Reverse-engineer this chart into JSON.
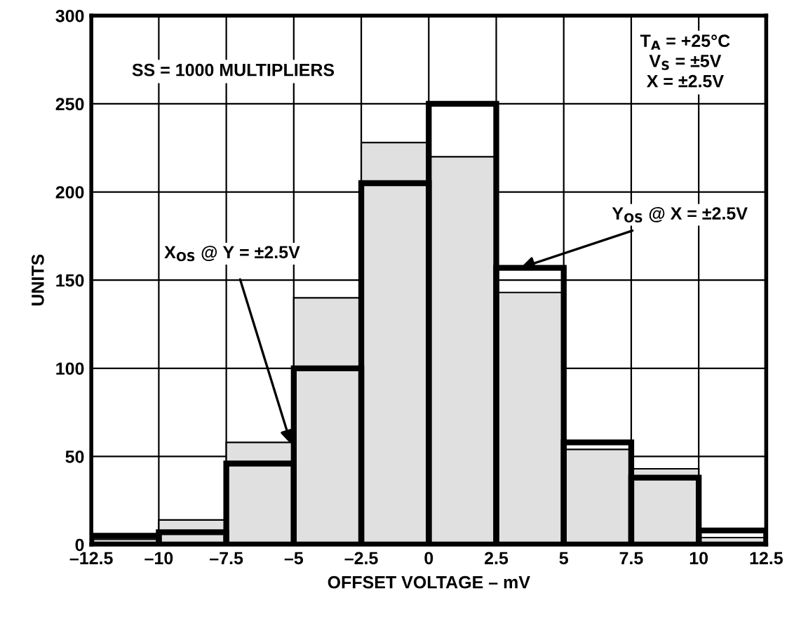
{
  "chart_data": {
    "type": "histogram",
    "xlabel": "OFFSET VOLTAGE – mV",
    "ylabel": "UNITS",
    "bins": [
      -12.5,
      -10,
      -7.5,
      -5,
      -2.5,
      0,
      2.5,
      5,
      7.5,
      10,
      12.5
    ],
    "series": [
      {
        "name": "X$_{OS}$ @ Y = ±2.5V",
        "color": "#e0e0e0",
        "values": [
          3,
          14,
          58,
          140,
          228,
          220,
          143,
          54,
          43,
          4
        ]
      },
      {
        "name": "Y$_{OS}$ @ X = ±2.5V",
        "color": "#000000",
        "values": [
          5,
          7,
          46,
          100,
          205,
          250,
          157,
          58,
          38,
          8
        ]
      }
    ],
    "annotations": [
      "SS = 1000 MULTIPLIERS",
      "T$_{A}$ = +25°C\nV$_{S}$ = ±5V\nX = ±2.5V"
    ],
    "xlim": [
      -12.5,
      12.5
    ],
    "ylim": [
      0,
      300
    ],
    "xticks": [
      {
        "value": -12.5,
        "label": "–12.5"
      },
      {
        "value": -10,
        "label": "–10"
      },
      {
        "value": -7.5,
        "label": "–7.5"
      },
      {
        "value": -5,
        "label": "–5"
      },
      {
        "value": -2.5,
        "label": "–2.5"
      },
      0,
      2.5,
      5,
      7.5,
      10,
      12.5
    ],
    "yticks": [
      0,
      50,
      100,
      150,
      200,
      250,
      300
    ],
    "grid": true,
    "legend": false
  }
}
